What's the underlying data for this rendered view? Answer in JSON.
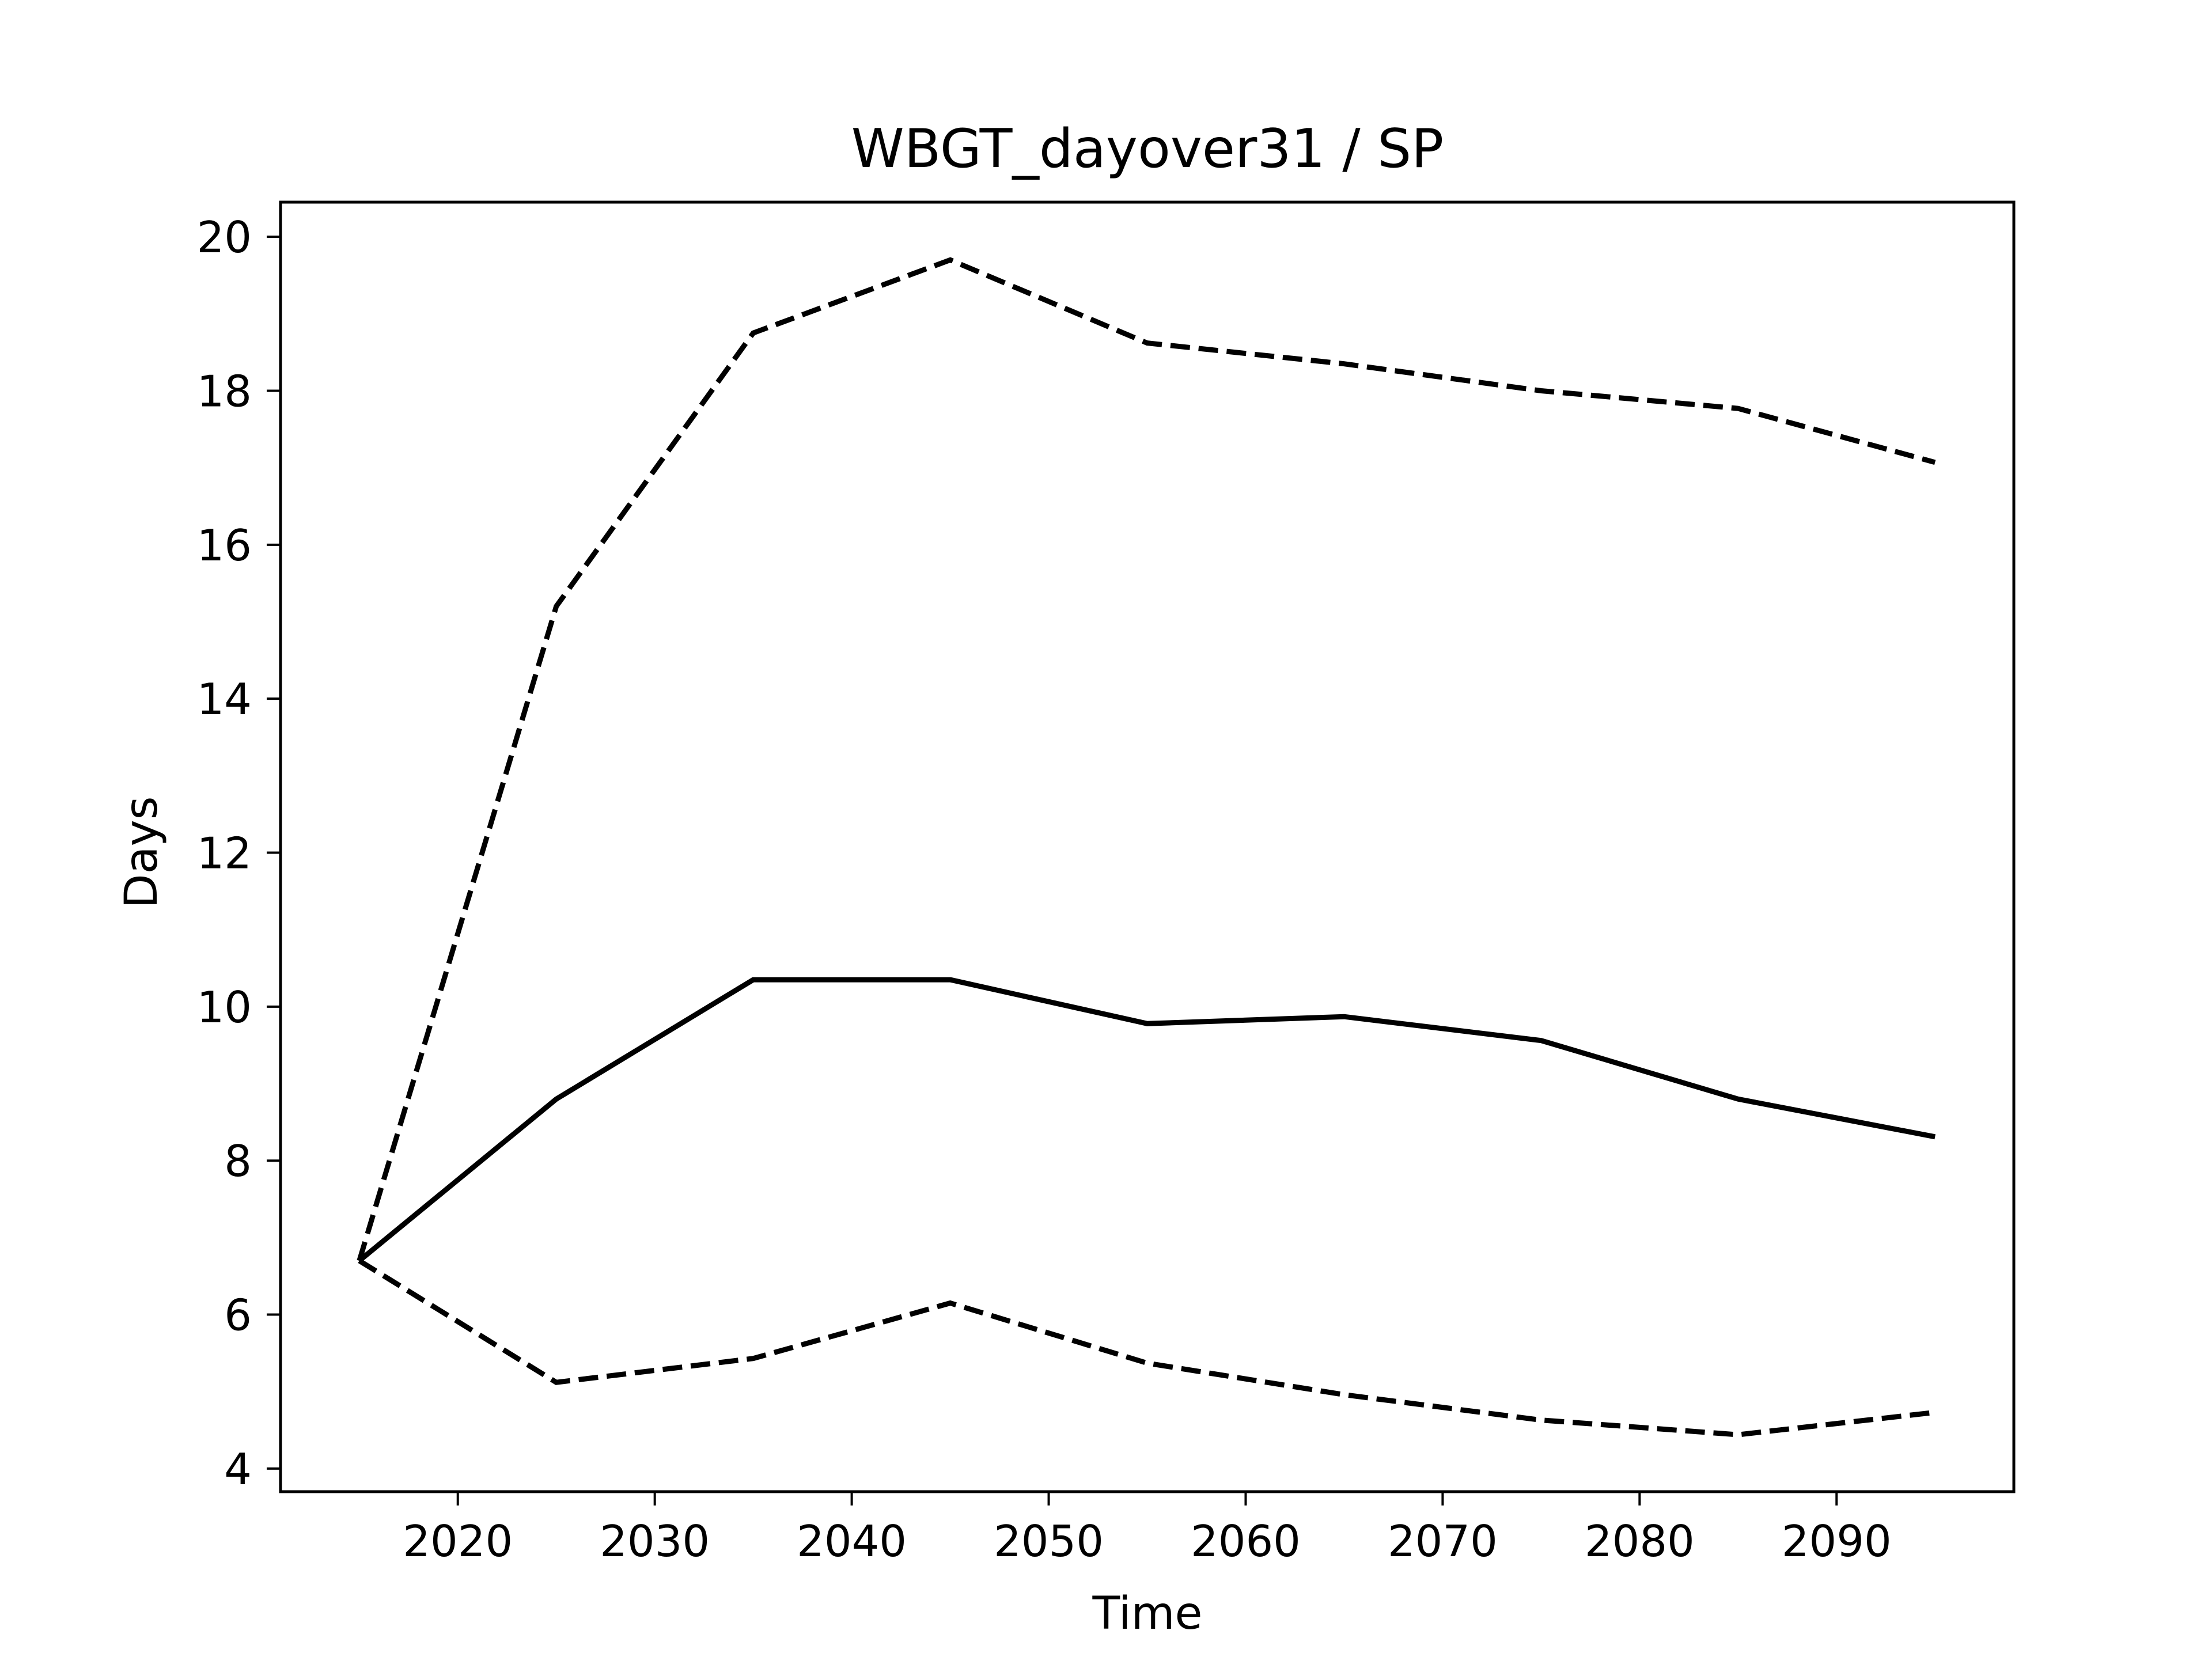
{
  "chart_data": {
    "type": "line",
    "title": "WBGT_dayover31 / SP",
    "xlabel": "Time",
    "ylabel": "Days",
    "xlim": [
      2011,
      2099
    ],
    "ylim": [
      3.7,
      20.45
    ],
    "xticks": [
      2020,
      2030,
      2040,
      2050,
      2060,
      2070,
      2080,
      2090
    ],
    "yticks": [
      4,
      6,
      8,
      10,
      12,
      14,
      16,
      18,
      20
    ],
    "grid": false,
    "legend": null,
    "x": [
      2015,
      2025,
      2035,
      2045,
      2055,
      2065,
      2075,
      2085,
      2095
    ],
    "series": [
      {
        "style": "solid",
        "color": "#000000",
        "values": [
          6.7,
          8.8,
          10.35,
          10.35,
          9.78,
          9.87,
          9.56,
          8.8,
          8.31
        ]
      },
      {
        "style": "dashed",
        "color": "#000000",
        "values": [
          6.7,
          15.2,
          18.75,
          19.7,
          18.62,
          18.35,
          18.0,
          17.77,
          17.07
        ]
      },
      {
        "style": "dashed",
        "color": "#000000",
        "values": [
          6.7,
          5.12,
          5.43,
          6.15,
          5.37,
          4.96,
          4.63,
          4.44,
          4.73
        ]
      }
    ]
  }
}
